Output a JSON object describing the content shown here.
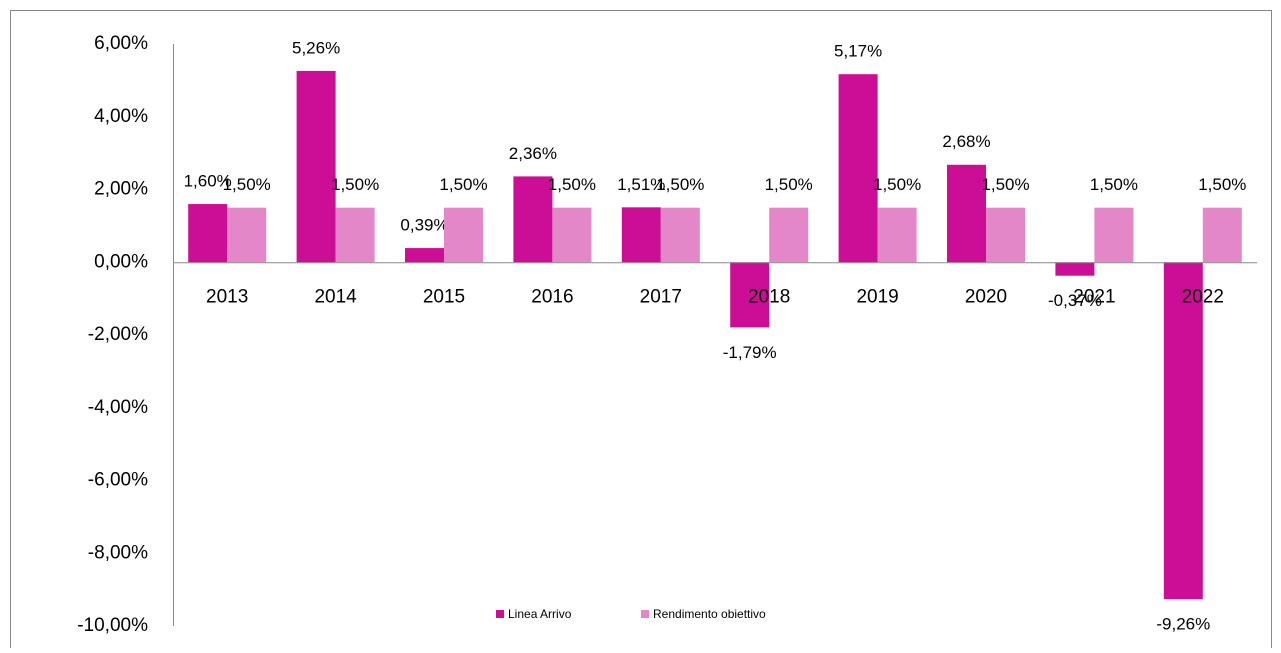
{
  "chart_data": {
    "type": "bar",
    "categories": [
      "2013",
      "2014",
      "2015",
      "2016",
      "2017",
      "2018",
      "2019",
      "2020",
      "2021",
      "2022"
    ],
    "series": [
      {
        "name": "Linea Arrivo",
        "color": "#cc0e96",
        "values": [
          1.6,
          5.26,
          0.39,
          2.36,
          1.51,
          -1.79,
          5.17,
          2.68,
          -0.37,
          -9.26
        ],
        "value_labels": [
          "1,60%",
          "5,26%",
          "0,39%",
          "2,36%",
          "1,51%",
          "-1,79%",
          "5,17%",
          "2,68%",
          "-0,37%",
          "-9,26%"
        ]
      },
      {
        "name": "Rendimento obiettivo",
        "color": "#e387c9",
        "values": [
          1.5,
          1.5,
          1.5,
          1.5,
          1.5,
          1.5,
          1.5,
          1.5,
          1.5,
          1.5
        ],
        "value_labels": [
          "1,50%",
          "1,50%",
          "1,50%",
          "1,50%",
          "1,50%",
          "1,50%",
          "1,50%",
          "1,50%",
          "1,50%",
          "1,50%"
        ]
      }
    ],
    "ylim": [
      -10,
      6
    ],
    "yticks": [
      {
        "value": -10,
        "label": "-10,00%"
      },
      {
        "value": -8,
        "label": "-8,00%"
      },
      {
        "value": -6,
        "label": "-6,00%"
      },
      {
        "value": -4,
        "label": "-4,00%"
      },
      {
        "value": -2,
        "label": "-2,00%"
      },
      {
        "value": 0,
        "label": "0,00%"
      },
      {
        "value": 2,
        "label": "2,00%"
      },
      {
        "value": 4,
        "label": "4,00%"
      },
      {
        "value": 6,
        "label": "6,00%"
      }
    ],
    "grid": false,
    "legend": "bottom"
  }
}
